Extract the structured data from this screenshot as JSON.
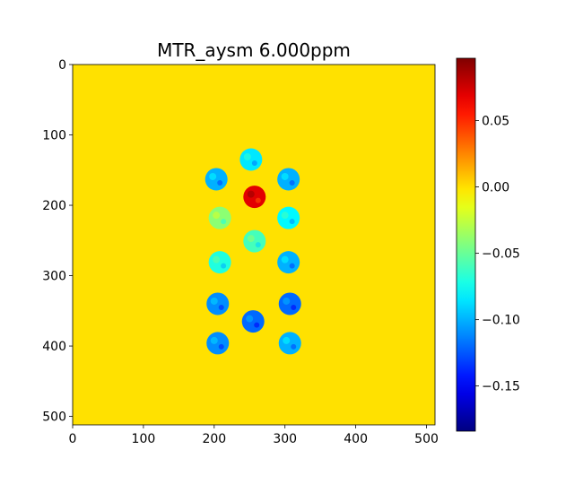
{
  "chart_data": {
    "type": "heatmap",
    "title": "MTR_aysm 6.000ppm",
    "xlabel": "",
    "ylabel": "",
    "image_size": [
      512,
      512
    ],
    "background_value": 0.0,
    "x_ticks": [
      "0",
      "100",
      "200",
      "300",
      "400",
      "500"
    ],
    "y_ticks": [
      "0",
      "100",
      "200",
      "300",
      "400",
      "500"
    ],
    "colorbar": {
      "colormap": "jet",
      "vmin": -0.184,
      "vmax": 0.097,
      "ticks": [
        "0.05",
        "0.00",
        "−0.05",
        "−0.10",
        "−0.15"
      ],
      "tick_values": [
        0.05,
        0.0,
        -0.05,
        -0.1,
        -0.15
      ]
    },
    "vials": [
      {
        "x": 252,
        "y": 135,
        "value": -0.085
      },
      {
        "x": 203,
        "y": 163,
        "value": -0.1
      },
      {
        "x": 305,
        "y": 163,
        "value": -0.1
      },
      {
        "x": 257,
        "y": 188,
        "value": 0.07
      },
      {
        "x": 208,
        "y": 218,
        "value": -0.04
      },
      {
        "x": 305,
        "y": 218,
        "value": -0.08
      },
      {
        "x": 257,
        "y": 251,
        "value": -0.06
      },
      {
        "x": 208,
        "y": 281,
        "value": -0.07
      },
      {
        "x": 305,
        "y": 281,
        "value": -0.1
      },
      {
        "x": 205,
        "y": 340,
        "value": -0.11
      },
      {
        "x": 307,
        "y": 340,
        "value": -0.12
      },
      {
        "x": 255,
        "y": 365,
        "value": -0.12
      },
      {
        "x": 205,
        "y": 396,
        "value": -0.11
      },
      {
        "x": 307,
        "y": 396,
        "value": -0.1
      }
    ]
  }
}
